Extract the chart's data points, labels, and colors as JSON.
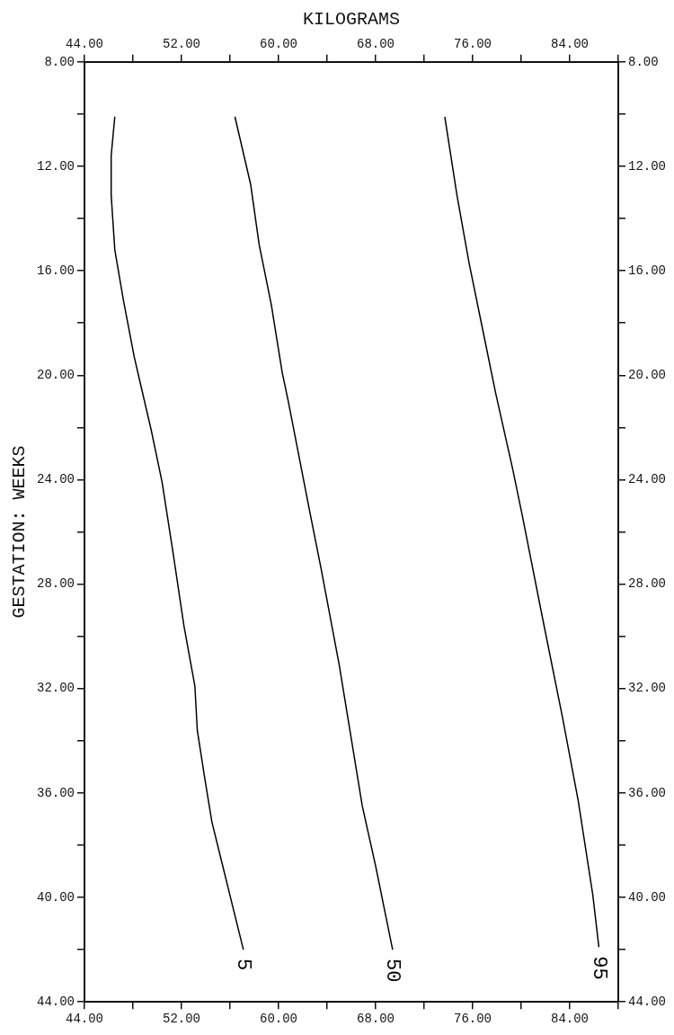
{
  "chart_data": {
    "type": "line",
    "x2label": "KILOGRAMS",
    "ylabel": "GESTATION: WEEKS",
    "xlim": [
      44,
      88
    ],
    "x2lim": [
      44,
      88
    ],
    "xticks": [
      {
        "value": 44,
        "label": "44.00"
      },
      {
        "value": 48,
        "label": null
      },
      {
        "value": 52,
        "label": "52.00"
      },
      {
        "value": 56,
        "label": null
      },
      {
        "value": 60,
        "label": "60.00"
      },
      {
        "value": 64,
        "label": null
      },
      {
        "value": 68,
        "label": "68.00"
      },
      {
        "value": 72,
        "label": null
      },
      {
        "value": 76,
        "label": "76.00"
      },
      {
        "value": 80,
        "label": null
      },
      {
        "value": 84,
        "label": "84.00"
      },
      {
        "value": 88,
        "label": null
      }
    ],
    "x2ticks": [
      {
        "value": 44,
        "label": "44.00"
      },
      {
        "value": 48,
        "label": null
      },
      {
        "value": 52,
        "label": "52.00"
      },
      {
        "value": 56,
        "label": null
      },
      {
        "value": 60,
        "label": "60.00"
      },
      {
        "value": 64,
        "label": null
      },
      {
        "value": 68,
        "label": "68.00"
      },
      {
        "value": 72,
        "label": null
      },
      {
        "value": 76,
        "label": "76.00"
      },
      {
        "value": 80,
        "label": null
      },
      {
        "value": 84,
        "label": "84.00"
      },
      {
        "value": 88,
        "label": null
      }
    ],
    "ylim": [
      44,
      8
    ],
    "y2lim": [
      44,
      8
    ],
    "yticks": [
      {
        "value": 8,
        "label": "8.00"
      },
      {
        "value": 10,
        "label": null
      },
      {
        "value": 12,
        "label": "12.00"
      },
      {
        "value": 14,
        "label": null
      },
      {
        "value": 16,
        "label": "16.00"
      },
      {
        "value": 18,
        "label": null
      },
      {
        "value": 20,
        "label": "20.00"
      },
      {
        "value": 22,
        "label": null
      },
      {
        "value": 24,
        "label": "24.00"
      },
      {
        "value": 26,
        "label": null
      },
      {
        "value": 28,
        "label": "28.00"
      },
      {
        "value": 30,
        "label": null
      },
      {
        "value": 32,
        "label": "32.00"
      },
      {
        "value": 34,
        "label": null
      },
      {
        "value": 36,
        "label": "36.00"
      },
      {
        "value": 38,
        "label": null
      },
      {
        "value": 40,
        "label": "40.00"
      },
      {
        "value": 42,
        "label": null
      },
      {
        "value": 44,
        "label": "44.00"
      }
    ],
    "y2ticks": [
      {
        "value": 8,
        "label": "8.00"
      },
      {
        "value": 10,
        "label": null
      },
      {
        "value": 12,
        "label": "12.00"
      },
      {
        "value": 14,
        "label": null
      },
      {
        "value": 16,
        "label": "16.00"
      },
      {
        "value": 18,
        "label": null
      },
      {
        "value": 20,
        "label": "20.00"
      },
      {
        "value": 22,
        "label": null
      },
      {
        "value": 24,
        "label": "24.00"
      },
      {
        "value": 26,
        "label": null
      },
      {
        "value": 28,
        "label": "28.00"
      },
      {
        "value": 30,
        "label": null
      },
      {
        "value": 32,
        "label": "32.00"
      },
      {
        "value": 34,
        "label": null
      },
      {
        "value": 36,
        "label": "36.00"
      },
      {
        "value": 38,
        "label": null
      },
      {
        "value": 40,
        "label": "40.00"
      },
      {
        "value": 42,
        "label": null
      },
      {
        "value": 44,
        "label": "44.00"
      }
    ],
    "grid": false,
    "legend": false,
    "marker": "none",
    "line_style": "solid",
    "series": [
      {
        "name": "5",
        "color": "#000000",
        "x": [
          46.5,
          46.2,
          46.2,
          46.5,
          47.2,
          48.1,
          48.6,
          49.5,
          50.4,
          51.3,
          52.2,
          53.1,
          53.3,
          53.9,
          54.5,
          55.4,
          56.3,
          57.1
        ],
        "values": [
          10.1,
          11.6,
          13.1,
          15.2,
          17.1,
          19.3,
          20.3,
          22.1,
          24.1,
          26.8,
          29.6,
          31.9,
          33.6,
          35.4,
          37.1,
          38.8,
          40.5,
          42.0
        ]
      },
      {
        "name": "50",
        "color": "#000000",
        "x": [
          56.4,
          57.7,
          58.4,
          59.4,
          60.3,
          60.8,
          62.6,
          63.5,
          65.0,
          66.9,
          68.0,
          69.4
        ],
        "values": [
          10.1,
          12.7,
          15.0,
          17.3,
          19.9,
          21.0,
          25.3,
          27.4,
          31.1,
          36.5,
          38.8,
          42.0
        ]
      },
      {
        "name": "95",
        "color": "#000000",
        "x": [
          73.7,
          74.7,
          75.7,
          76.8,
          77.9,
          79.3,
          80.1,
          81.8,
          83.4,
          84.7,
          85.9,
          86.4
        ],
        "values": [
          10.1,
          13.1,
          15.7,
          18.2,
          20.7,
          23.6,
          25.4,
          29.4,
          33.1,
          36.3,
          39.9,
          41.9
        ]
      }
    ]
  }
}
